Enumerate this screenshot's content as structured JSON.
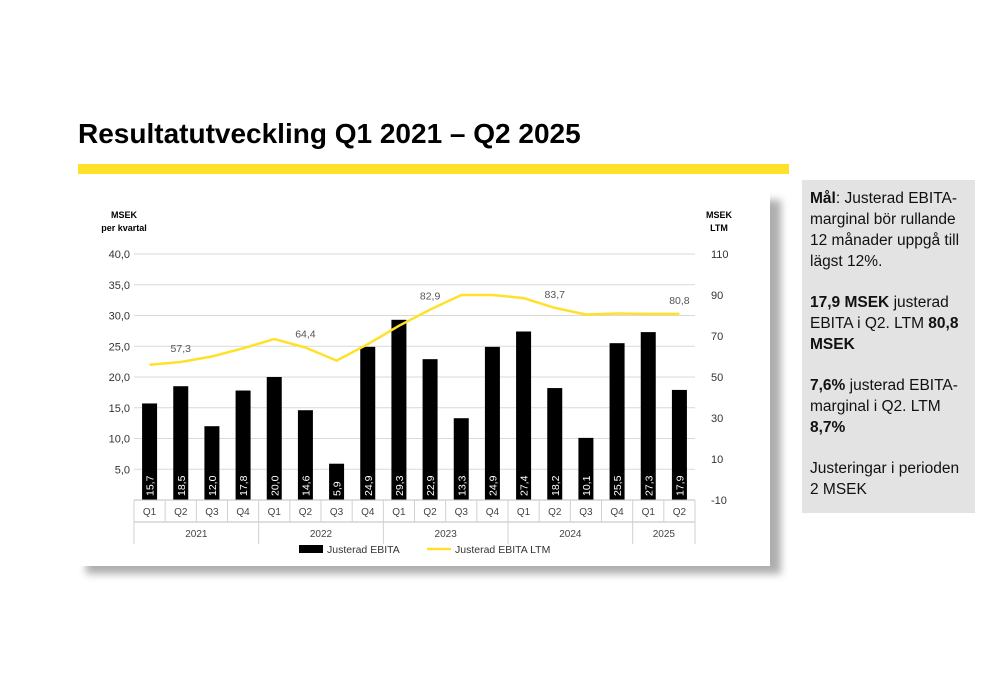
{
  "title": "Resultatutveckling Q1 2021 – Q2 2025",
  "colors": {
    "accent": "#FFE12A",
    "bar": "#000000",
    "line": "#FFE12A",
    "panel": "#E3E3E3"
  },
  "side_panel": {
    "p1": {
      "bold": "Mål",
      "text": ":  Justerad EBITA-marginal bör rullande 12 månader uppgå till lägst 12%."
    },
    "p2": {
      "bold1": "17,9 MSEK",
      "text1": " justerad EBITA i Q2. LTM ",
      "bold2": "80,8 MSEK"
    },
    "p3": {
      "bold1": "7,6%",
      "text1": " justerad EBITA-marginal i Q2. LTM ",
      "bold2": "8,7%"
    },
    "p4": {
      "text": "Justeringar i perioden 2 MSEK"
    }
  },
  "chart_data": {
    "type": "bar+line",
    "left_axis_label": [
      "MSEK",
      "per kvartal"
    ],
    "right_axis_label": [
      "MSEK",
      "LTM"
    ],
    "left_ticks": [
      "40,0",
      "35,0",
      "30,0",
      "25,0",
      "20,0",
      "15,0",
      "10,0",
      "5,0"
    ],
    "right_ticks": [
      "110",
      "90",
      "70",
      "50",
      "30",
      "10",
      "-10"
    ],
    "left_ylim": [
      0,
      40
    ],
    "right_ylim": [
      -10,
      110
    ],
    "grid": true,
    "quarters": [
      "Q1",
      "Q2",
      "Q3",
      "Q4",
      "Q1",
      "Q2",
      "Q3",
      "Q4",
      "Q1",
      "Q2",
      "Q3",
      "Q4",
      "Q1",
      "Q2",
      "Q3",
      "Q4",
      "Q1",
      "Q2"
    ],
    "years": [
      {
        "label": "2021",
        "count": 4
      },
      {
        "label": "2022",
        "count": 4
      },
      {
        "label": "2023",
        "count": 4
      },
      {
        "label": "2024",
        "count": 4
      },
      {
        "label": "2025",
        "count": 2
      }
    ],
    "bars": {
      "name": "Justerad EBITA",
      "values": [
        15.7,
        18.5,
        12.0,
        17.8,
        20.0,
        14.6,
        5.9,
        24.9,
        29.3,
        22.9,
        13.3,
        24.9,
        27.4,
        18.2,
        10.1,
        25.5,
        27.3,
        17.9
      ],
      "labels": [
        "15,7",
        "18,5",
        "12,0",
        "17,8",
        "20,0",
        "14,6",
        "5,9",
        "24,9",
        "29,3",
        "22,9",
        "13,3",
        "24,9",
        "27,4",
        "18,2",
        "10,1",
        "25,5",
        "27,3",
        "17,9"
      ]
    },
    "line": {
      "name": "Justerad EBITA LTM",
      "values": [
        56,
        57.3,
        60,
        64,
        68.5,
        64.4,
        58,
        66,
        75,
        82.9,
        90,
        90,
        88.5,
        83.7,
        80.5,
        81,
        80.8,
        80.8
      ],
      "point_labels": [
        {
          "index": 1,
          "text": "57,3"
        },
        {
          "index": 5,
          "text": "64,4"
        },
        {
          "index": 9,
          "text": "82,9"
        },
        {
          "index": 13,
          "text": "83,7"
        },
        {
          "index": 17,
          "text": "80,8"
        }
      ]
    },
    "legend": [
      "Justerad EBITA",
      "Justerad EBITA LTM"
    ],
    "legend_position": "bottom"
  }
}
